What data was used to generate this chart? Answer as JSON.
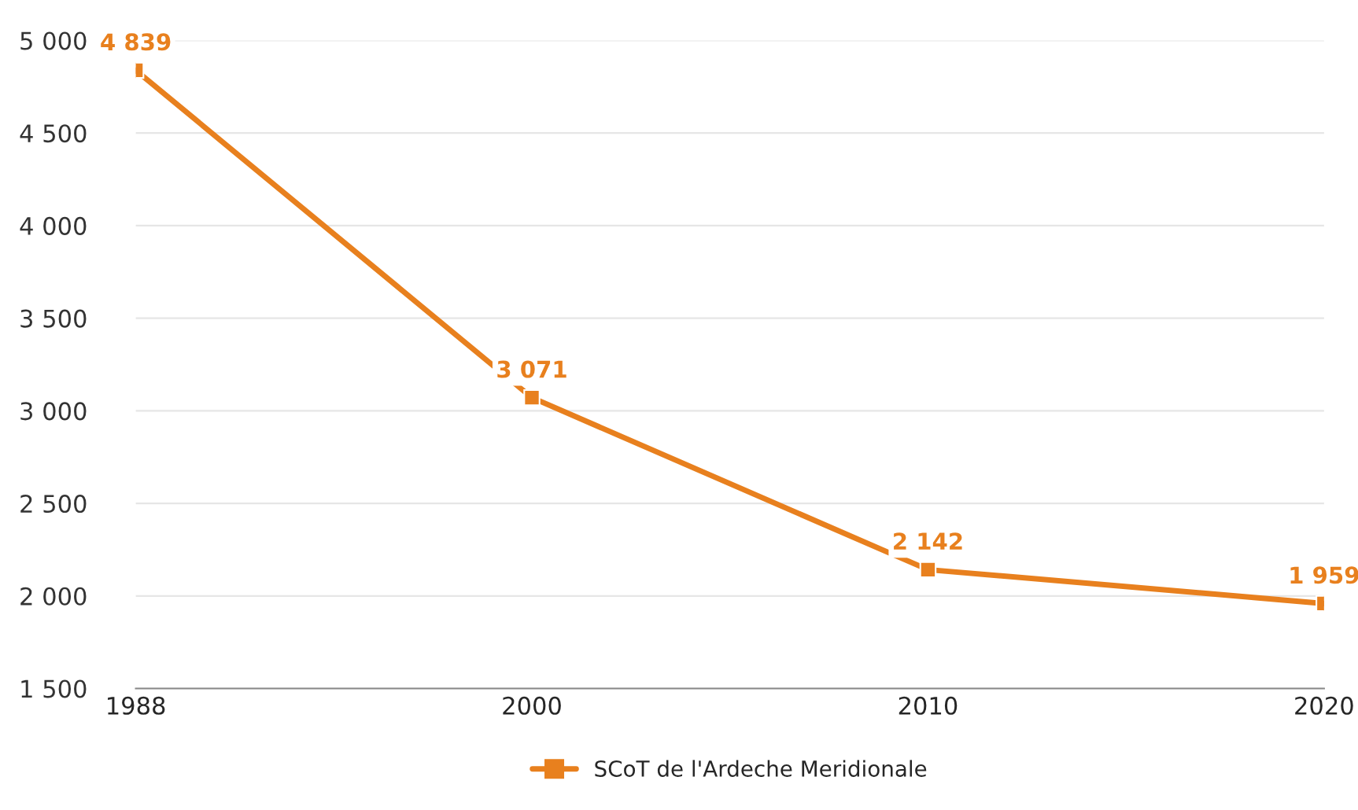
{
  "chart_data": {
    "type": "line",
    "categories": [
      "1988",
      "2000",
      "2010",
      "2020"
    ],
    "series": [
      {
        "name": "SCoT de l'Ardeche Meridionale",
        "color": "#e8801e",
        "values": [
          4839,
          3071,
          2142,
          1959
        ],
        "value_labels": [
          "4 839",
          "3 071",
          "2 142",
          "1 959"
        ]
      }
    ],
    "ylim": [
      1500,
      5000
    ],
    "yticks": [
      {
        "value": 1500,
        "label": "1 500"
      },
      {
        "value": 2000,
        "label": "2 000"
      },
      {
        "value": 2500,
        "label": "2 500"
      },
      {
        "value": 3000,
        "label": "3 000"
      },
      {
        "value": 3500,
        "label": "3 500"
      },
      {
        "value": 4000,
        "label": "4 000"
      },
      {
        "value": 4500,
        "label": "4 500"
      },
      {
        "value": 5000,
        "label": "5 000"
      }
    ],
    "grid": "y",
    "legend": "bottom",
    "marker": "square",
    "line_style": "solid"
  }
}
